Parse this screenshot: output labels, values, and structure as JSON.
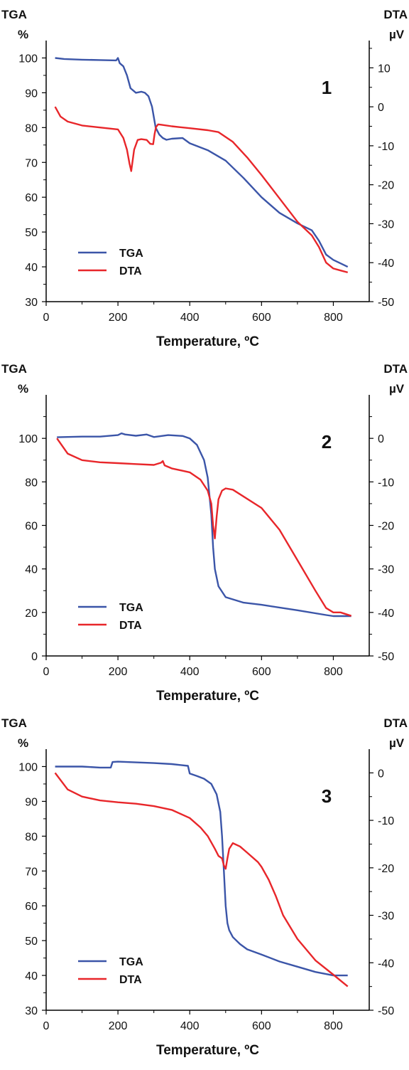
{
  "colors": {
    "tga": "#3b55a8",
    "dta": "#e8262a"
  },
  "chart_data": [
    {
      "type": "line",
      "panel_label": "1",
      "left_title": "TGA",
      "left_unit": "%",
      "right_title": "DTA",
      "right_unit": "µV",
      "xlabel": "Temperature, ºC",
      "xlim": [
        0,
        900
      ],
      "ylim_left": [
        30,
        105
      ],
      "ylim_right": [
        -50,
        17
      ],
      "x_ticks": [
        0,
        200,
        400,
        600,
        800
      ],
      "y_ticks_left": [
        30,
        40,
        50,
        60,
        70,
        80,
        90,
        100
      ],
      "y_ticks_right": [
        -50,
        -40,
        -30,
        -20,
        -10,
        0,
        10
      ],
      "legend": [
        "TGA",
        "DTA"
      ],
      "series": [
        {
          "name": "TGA",
          "axis": "left",
          "x": [
            25,
            50,
            100,
            150,
            195,
            200,
            205,
            215,
            225,
            235,
            250,
            265,
            275,
            285,
            295,
            305,
            315,
            325,
            335,
            350,
            380,
            400,
            450,
            500,
            550,
            600,
            650,
            700,
            740,
            760,
            780,
            800,
            820,
            840
          ],
          "y": [
            100,
            99.7,
            99.5,
            99.4,
            99.3,
            100,
            98.5,
            97.6,
            95,
            91.3,
            90,
            90.3,
            90,
            89,
            86,
            80,
            78,
            77,
            76.5,
            76.8,
            77,
            75.5,
            73.5,
            70.5,
            65.5,
            60,
            55.5,
            52.5,
            50.5,
            47.5,
            43.5,
            42,
            41,
            40
          ]
        },
        {
          "name": "DTA",
          "axis": "right",
          "x": [
            25,
            40,
            60,
            100,
            150,
            200,
            215,
            225,
            232,
            237,
            240,
            245,
            255,
            265,
            280,
            290,
            298,
            302,
            306,
            312,
            320,
            350,
            400,
            450,
            480,
            520,
            560,
            600,
            650,
            700,
            740,
            760,
            780,
            800,
            820,
            840
          ],
          "y": [
            0,
            -2.5,
            -3.8,
            -4.8,
            -5.3,
            -5.8,
            -8,
            -11,
            -14.5,
            -16.5,
            -14.5,
            -11,
            -8.5,
            -8.3,
            -8.5,
            -9.5,
            -9.6,
            -7,
            -5.2,
            -4.5,
            -4.6,
            -5,
            -5.5,
            -6,
            -6.5,
            -9,
            -13,
            -17.5,
            -23.5,
            -29.5,
            -33,
            -36,
            -40,
            -41.5,
            -42,
            -42.5
          ]
        }
      ]
    },
    {
      "type": "line",
      "panel_label": "2",
      "left_title": "TGA",
      "left_unit": "%",
      "right_title": "DTA",
      "right_unit": "µV",
      "xlabel": "Temperature, ºC",
      "xlim": [
        0,
        900
      ],
      "ylim_left": [
        0,
        120
      ],
      "ylim_right": [
        -50,
        10
      ],
      "x_ticks": [
        0,
        200,
        400,
        600,
        800
      ],
      "y_ticks_left": [
        0,
        20,
        40,
        60,
        80,
        100
      ],
      "y_ticks_right": [
        -50,
        -40,
        -30,
        -20,
        -10,
        0
      ],
      "legend": [
        "TGA",
        "DTA"
      ],
      "series": [
        {
          "name": "TGA",
          "axis": "left",
          "x": [
            30,
            100,
            150,
            200,
            210,
            220,
            250,
            280,
            300,
            340,
            360,
            380,
            400,
            420,
            440,
            450,
            460,
            465,
            470,
            480,
            500,
            550,
            600,
            700,
            780,
            800,
            850
          ],
          "y": [
            100.5,
            100.8,
            100.8,
            101.5,
            102.3,
            101.8,
            101.2,
            101.8,
            100.6,
            101.5,
            101.3,
            101.1,
            100,
            97,
            90,
            82,
            65,
            50,
            40,
            32,
            27,
            24.5,
            23.5,
            21,
            18.8,
            18.3,
            18.3
          ]
        },
        {
          "name": "DTA",
          "axis": "right",
          "x": [
            30,
            60,
            100,
            150,
            200,
            250,
            300,
            320,
            325,
            330,
            350,
            400,
            430,
            450,
            460,
            465,
            470,
            475,
            480,
            490,
            500,
            520,
            600,
            650,
            700,
            750,
            780,
            800,
            820,
            850
          ],
          "y": [
            0,
            -3.5,
            -5,
            -5.5,
            -5.7,
            -5.9,
            -6.1,
            -5.6,
            -5.2,
            -6.2,
            -6.9,
            -7.8,
            -9.5,
            -12,
            -15,
            -20,
            -23,
            -18,
            -14,
            -12,
            -11.5,
            -11.8,
            -16,
            -21,
            -28,
            -35,
            -39,
            -40,
            -40,
            -40.8
          ]
        }
      ]
    },
    {
      "type": "line",
      "panel_label": "3",
      "left_title": "TGA",
      "left_unit": "%",
      "right_title": "DTA",
      "right_unit": "µV",
      "xlabel": "Temperature, ºC",
      "xlim": [
        0,
        900
      ],
      "ylim_left": [
        30,
        105
      ],
      "ylim_right": [
        -50,
        5
      ],
      "x_ticks": [
        0,
        200,
        400,
        600,
        800
      ],
      "y_ticks_left": [
        30,
        40,
        50,
        60,
        70,
        80,
        90,
        100
      ],
      "y_ticks_right": [
        -50,
        -40,
        -30,
        -20,
        -10,
        0
      ],
      "legend": [
        "TGA",
        "DTA"
      ],
      "series": [
        {
          "name": "TGA",
          "axis": "left",
          "x": [
            25,
            100,
            150,
            180,
            185,
            200,
            250,
            300,
            350,
            395,
            400,
            420,
            440,
            460,
            475,
            485,
            490,
            495,
            500,
            505,
            510,
            520,
            540,
            560,
            600,
            650,
            700,
            750,
            800,
            840
          ],
          "y": [
            100,
            100,
            99.7,
            99.7,
            101.3,
            101.4,
            101.2,
            101,
            100.7,
            100.2,
            98,
            97.3,
            96.5,
            95,
            92,
            87,
            80,
            70,
            60,
            55,
            53,
            51,
            49,
            47.5,
            46,
            44,
            42.5,
            41,
            40,
            40
          ]
        },
        {
          "name": "DTA",
          "axis": "right",
          "x": [
            25,
            60,
            100,
            150,
            200,
            250,
            300,
            350,
            400,
            430,
            450,
            470,
            480,
            490,
            495,
            500,
            505,
            510,
            520,
            540,
            560,
            590,
            600,
            620,
            640,
            660,
            700,
            750,
            800,
            840
          ],
          "y": [
            0,
            -3.5,
            -5,
            -5.8,
            -6.2,
            -6.5,
            -7,
            -7.8,
            -9.5,
            -11.5,
            -13.3,
            -16,
            -17.5,
            -18,
            -19.5,
            -20.2,
            -18,
            -16,
            -14.8,
            -15.5,
            -16.8,
            -18.8,
            -19.8,
            -22.5,
            -26,
            -30,
            -35,
            -39.5,
            -42.5,
            -45
          ]
        }
      ]
    }
  ]
}
